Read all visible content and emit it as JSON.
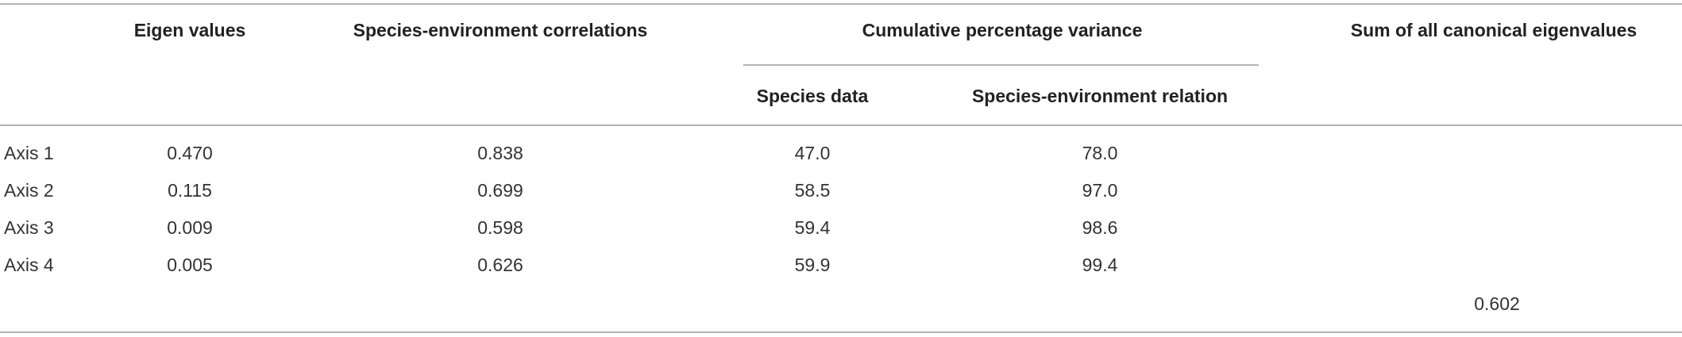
{
  "table": {
    "headers": [
      "Eigen values",
      "Species-environment correlations",
      "Cumulative percentage variance",
      "Sum of all canonical eigenvalues"
    ],
    "subheaders": [
      "Species data",
      "Species-environment relation"
    ],
    "rows": [
      [
        "Axis 1",
        "0.470",
        "0.838",
        "47.0",
        "78.0"
      ],
      [
        "Axis 2",
        "0.115",
        "0.699",
        "58.5",
        "97.0"
      ],
      [
        "Axis 3",
        "0.009",
        "0.598",
        "59.4",
        "98.6"
      ],
      [
        "Axis 4",
        "0.005",
        "0.626",
        "59.9",
        "99.4"
      ]
    ],
    "sum": "0.602"
  }
}
